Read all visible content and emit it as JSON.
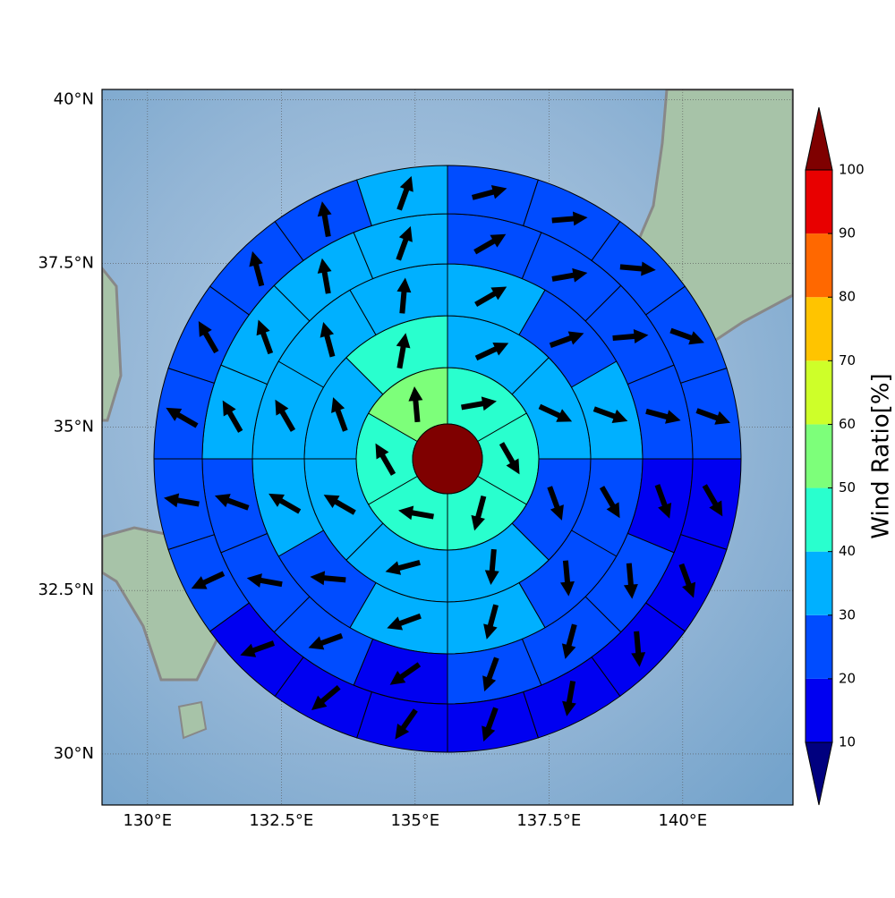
{
  "chart_data": {
    "type": "polar_sectors",
    "xlim": [
      129.15,
      142.06
    ],
    "ylim": [
      29.22,
      40.16
    ],
    "xticks": [
      {
        "value": 130,
        "label": "130°E"
      },
      {
        "value": 132.5,
        "label": "132.5°E"
      },
      {
        "value": 135,
        "label": "135°E"
      },
      {
        "value": 137.5,
        "label": "137.5°E"
      },
      {
        "value": 140,
        "label": "140°E"
      }
    ],
    "yticks": [
      {
        "value": 30,
        "label": "30°N"
      },
      {
        "value": 32.5,
        "label": "32.5°N"
      },
      {
        "value": 35,
        "label": "35°N"
      },
      {
        "value": 37.5,
        "label": "37.5°N"
      },
      {
        "value": 40,
        "label": "40°N"
      }
    ],
    "grid": true,
    "colorbar": {
      "label": "Wind Ratio[%]",
      "ticks": [
        10,
        20,
        30,
        40,
        50,
        60,
        70,
        80,
        90,
        100
      ],
      "colors": [
        "#0000f1",
        "#004cff",
        "#00b0ff",
        "#29ffce",
        "#7dff7a",
        "#ceff29",
        "#ffc400",
        "#ff6800",
        "#e80000"
      ],
      "under_color": "#00007f",
      "over_color": "#7f0000"
    },
    "rings": [
      {
        "values": [
          45,
          45,
          45,
          45,
          45,
          55
        ],
        "directions": [
          80,
          150,
          195,
          280,
          330,
          355
        ]
      },
      {
        "values": [
          35,
          35,
          25,
          35,
          35,
          35,
          35,
          45
        ],
        "directions": [
          65,
          115,
          160,
          185,
          255,
          300,
          340,
          10
        ]
      },
      {
        "values": [
          35,
          25,
          35,
          25,
          25,
          35,
          35,
          25,
          35,
          35,
          35,
          35
        ],
        "directions": [
          60,
          70,
          110,
          150,
          175,
          195,
          250,
          275,
          300,
          330,
          345,
          5
        ]
      },
      {
        "values": [
          25,
          25,
          25,
          25,
          15,
          25,
          25,
          25,
          15,
          25,
          25,
          25,
          35,
          35,
          35,
          35
        ],
        "directions": [
          60,
          80,
          85,
          105,
          160,
          175,
          195,
          200,
          235,
          250,
          280,
          290,
          330,
          340,
          350,
          20
        ]
      },
      {
        "values": [
          25,
          25,
          25,
          25,
          25,
          15,
          15,
          15,
          15,
          15,
          15,
          15,
          15,
          25,
          25,
          25,
          25,
          25,
          25,
          35
        ],
        "directions": [
          75,
          85,
          95,
          110,
          110,
          150,
          160,
          175,
          190,
          200,
          215,
          230,
          250,
          245,
          280,
          300,
          330,
          345,
          350,
          20
        ]
      }
    ]
  }
}
